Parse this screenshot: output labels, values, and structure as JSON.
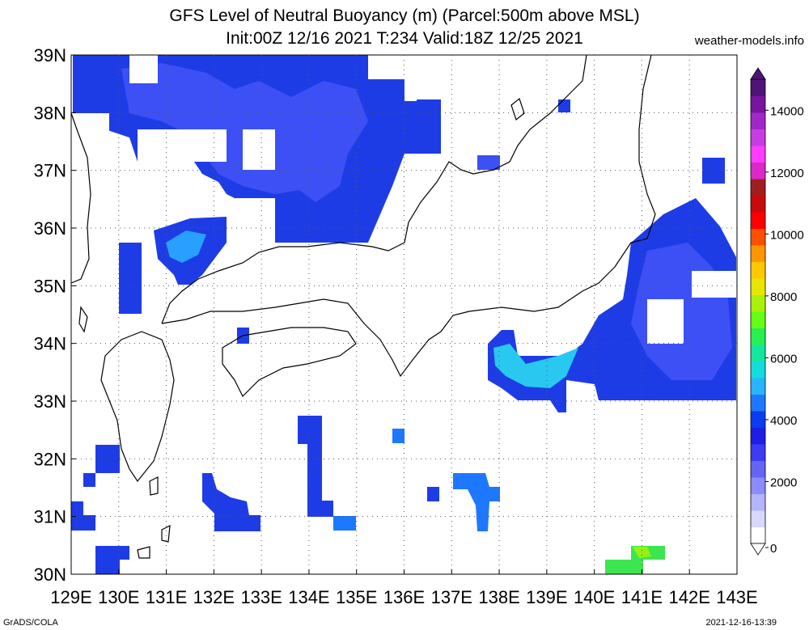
{
  "header": {
    "title_line1": "GFS Level of Neutral Buoyancy (m) (Parcel:500m above MSL)",
    "title_line2": "Init:00Z 12/16 2021 T:234 Valid:18Z 12/25 2021",
    "site": "weather-models.info"
  },
  "footer": {
    "credit": "GrADS/COLA",
    "timestamp": "2021-12-16-13:39"
  },
  "map": {
    "lon_labels": [
      "129E",
      "130E",
      "131E",
      "132E",
      "133E",
      "134E",
      "135E",
      "136E",
      "137E",
      "138E",
      "139E",
      "140E",
      "141E",
      "142E",
      "143E"
    ],
    "lat_labels": [
      "30N",
      "31N",
      "32N",
      "33N",
      "34N",
      "35N",
      "36N",
      "37N",
      "38N",
      "39N"
    ],
    "lon_range": [
      129,
      143
    ],
    "lat_range": [
      30,
      39
    ],
    "grid": "dotted",
    "units": "m"
  },
  "colorbar": {
    "labels": [
      "0",
      "2000",
      "4000",
      "6000",
      "8000",
      "10000",
      "12000",
      "14000"
    ],
    "range": [
      0,
      15000
    ],
    "colors": [
      "#ffffff",
      "#d7d7ff",
      "#b4b4ff",
      "#8c8cff",
      "#6464f5",
      "#3c3cf0",
      "#1e1ee6",
      "#0a3cf0",
      "#1e78ff",
      "#28b4ff",
      "#14dcdc",
      "#14e6a0",
      "#28f050",
      "#64ff14",
      "#aaf00a",
      "#e6e600",
      "#ffc800",
      "#ff9600",
      "#ff5000",
      "#ff0000",
      "#c80a0a",
      "#a01e1e",
      "#dc28c8",
      "#ff3cff",
      "#c83ce6",
      "#a028c8",
      "#7814a0",
      "#501478"
    ]
  }
}
